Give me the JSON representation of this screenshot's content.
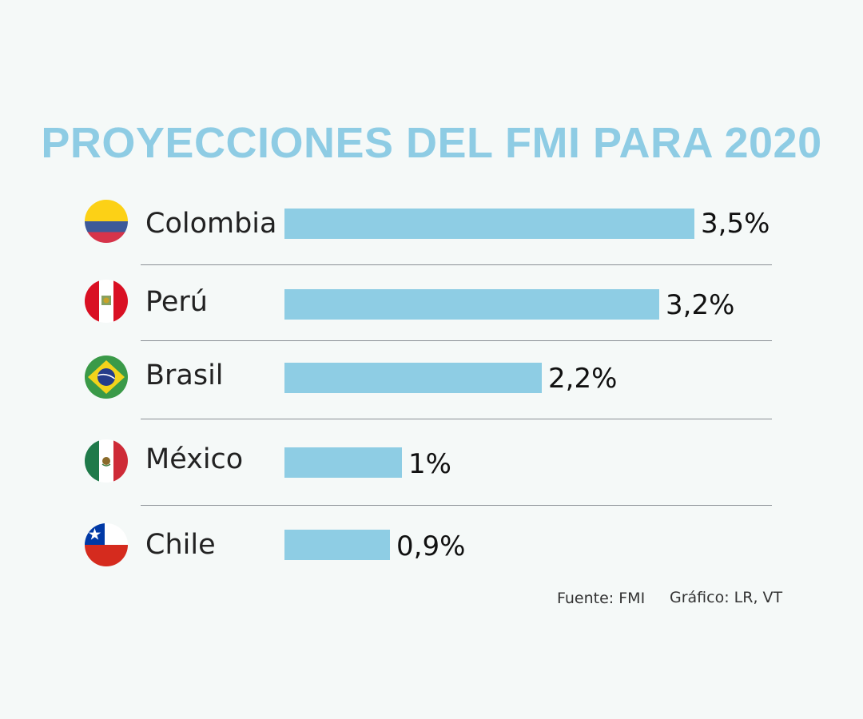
{
  "header": {
    "title": "PROYECCIONES DEL FMI PARA 2020"
  },
  "chart_data": {
    "type": "bar",
    "orientation": "horizontal",
    "categories": [
      "Colombia",
      "Perú",
      "Brasil",
      "México",
      "Chile"
    ],
    "values": [
      3.5,
      3.2,
      2.2,
      1.0,
      0.9
    ],
    "value_labels": [
      "3,5%",
      "3,2%",
      "2,2%",
      "1%",
      "0,9%"
    ],
    "title": "PROYECCIONES DEL FMI PARA 2020",
    "xlabel": "",
    "ylabel": "",
    "grid": false,
    "legend": "none",
    "bar_color": "#8ecde4"
  },
  "flags": [
    "colombia-flag-icon",
    "peru-flag-icon",
    "brazil-flag-icon",
    "mexico-flag-icon",
    "chile-flag-icon"
  ],
  "footer": {
    "source": "Fuente: FMI",
    "credit": "Gráfico: LR, VT"
  },
  "colors": {
    "title": "#8ecce4",
    "bar": "#8ecde4",
    "background": "#f5f9f8"
  }
}
